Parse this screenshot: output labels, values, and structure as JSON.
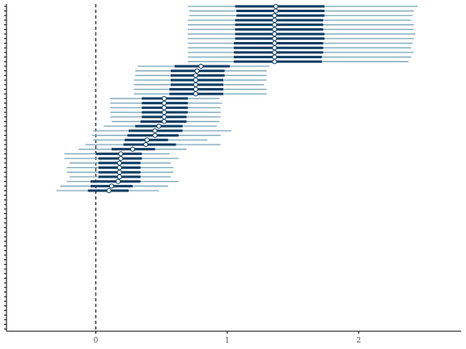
{
  "chart_data": {
    "type": "forest-interval",
    "title": "",
    "xlabel": "",
    "ylabel": "",
    "xlim": [
      -0.68,
      2.78
    ],
    "xticks": [
      0,
      1,
      2
    ],
    "xtick_labels": [
      "0",
      "1",
      "2"
    ],
    "reference_line_x": 0,
    "y_slots": 71,
    "colors": {
      "outer_interval": "#7aa6b6",
      "inner_interval": "#0b3d63",
      "point_fill": "#ffffff",
      "point_stroke": "#0b3d63",
      "reference_line": "#000000",
      "axis": "#000000"
    },
    "rows": [
      {
        "mean": 1.37,
        "inner": [
          1.06,
          1.74
        ],
        "outer": [
          0.7,
          2.45
        ]
      },
      {
        "mean": 1.37,
        "inner": [
          1.07,
          1.74
        ],
        "outer": [
          0.71,
          2.42
        ]
      },
      {
        "mean": 1.36,
        "inner": [
          1.07,
          1.74
        ],
        "outer": [
          0.71,
          2.41
        ]
      },
      {
        "mean": 1.36,
        "inner": [
          1.06,
          1.73
        ],
        "outer": [
          0.7,
          2.4
        ]
      },
      {
        "mean": 1.36,
        "inner": [
          1.06,
          1.73
        ],
        "outer": [
          0.7,
          2.42
        ]
      },
      {
        "mean": 1.36,
        "inner": [
          1.06,
          1.73
        ],
        "outer": [
          0.7,
          2.42
        ]
      },
      {
        "mean": 1.36,
        "inner": [
          1.06,
          1.74
        ],
        "outer": [
          0.7,
          2.43
        ]
      },
      {
        "mean": 1.36,
        "inner": [
          1.06,
          1.74
        ],
        "outer": [
          0.7,
          2.42
        ]
      },
      {
        "mean": 1.36,
        "inner": [
          1.05,
          1.73
        ],
        "outer": [
          0.7,
          2.41
        ]
      },
      {
        "mean": 1.36,
        "inner": [
          1.05,
          1.73
        ],
        "outer": [
          0.7,
          2.4
        ]
      },
      {
        "mean": 1.36,
        "inner": [
          1.05,
          1.73
        ],
        "outer": [
          0.7,
          2.42
        ]
      },
      {
        "mean": 1.36,
        "inner": [
          1.05,
          1.72
        ],
        "outer": [
          0.7,
          2.4
        ]
      },
      {
        "mean": 1.36,
        "inner": [
          1.05,
          1.72
        ],
        "outer": [
          0.7,
          2.38
        ]
      },
      {
        "mean": 0.8,
        "inner": [
          0.6,
          1.02
        ],
        "outer": [
          0.32,
          1.32
        ]
      },
      {
        "mean": 0.77,
        "inner": [
          0.57,
          0.98
        ],
        "outer": [
          0.3,
          1.3
        ]
      },
      {
        "mean": 0.76,
        "inner": [
          0.57,
          0.98
        ],
        "outer": [
          0.3,
          1.3
        ]
      },
      {
        "mean": 0.76,
        "inner": [
          0.57,
          0.97
        ],
        "outer": [
          0.29,
          1.3
        ]
      },
      {
        "mean": 0.76,
        "inner": [
          0.57,
          0.97
        ],
        "outer": [
          0.29,
          1.28
        ]
      },
      {
        "mean": 0.76,
        "inner": [
          0.56,
          0.97
        ],
        "outer": [
          0.29,
          1.3
        ]
      },
      {
        "mean": 0.76,
        "inner": [
          0.56,
          0.97
        ],
        "outer": [
          0.29,
          1.3
        ]
      },
      {
        "mean": 0.52,
        "inner": [
          0.35,
          0.7
        ],
        "outer": [
          0.11,
          0.94
        ]
      },
      {
        "mean": 0.52,
        "inner": [
          0.35,
          0.7
        ],
        "outer": [
          0.11,
          0.96
        ]
      },
      {
        "mean": 0.52,
        "inner": [
          0.35,
          0.7
        ],
        "outer": [
          0.11,
          0.95
        ]
      },
      {
        "mean": 0.52,
        "inner": [
          0.35,
          0.7
        ],
        "outer": [
          0.11,
          0.95
        ]
      },
      {
        "mean": 0.52,
        "inner": [
          0.35,
          0.69
        ],
        "outer": [
          0.11,
          0.95
        ]
      },
      {
        "mean": 0.52,
        "inner": [
          0.34,
          0.69
        ],
        "outer": [
          0.12,
          0.94
        ]
      },
      {
        "mean": 0.48,
        "inner": [
          0.3,
          0.66
        ],
        "outer": [
          0.06,
          0.92
        ]
      },
      {
        "mean": 0.45,
        "inner": [
          0.25,
          0.66
        ],
        "outer": [
          -0.02,
          1.03
        ]
      },
      {
        "mean": 0.45,
        "inner": [
          0.24,
          0.63
        ],
        "outer": [
          -0.03,
          0.95
        ]
      },
      {
        "mean": 0.39,
        "inner": [
          0.22,
          0.55
        ],
        "outer": [
          -0.02,
          0.85
        ]
      },
      {
        "mean": 0.38,
        "inner": [
          0.21,
          0.61
        ],
        "outer": [
          -0.08,
          0.95
        ]
      },
      {
        "mean": 0.28,
        "inner": [
          0.12,
          0.45
        ],
        "outer": [
          -0.13,
          0.69
        ]
      },
      {
        "mean": 0.19,
        "inner": [
          0.0,
          0.35
        ],
        "outer": [
          -0.24,
          0.56
        ]
      },
      {
        "mean": 0.19,
        "inner": [
          0.02,
          0.35
        ],
        "outer": [
          -0.24,
          0.63
        ]
      },
      {
        "mean": 0.18,
        "inner": [
          0.02,
          0.34
        ],
        "outer": [
          -0.2,
          0.57
        ]
      },
      {
        "mean": 0.18,
        "inner": [
          0.02,
          0.34
        ],
        "outer": [
          -0.22,
          0.59
        ]
      },
      {
        "mean": 0.18,
        "inner": [
          0.02,
          0.34
        ],
        "outer": [
          -0.22,
          0.59
        ]
      },
      {
        "mean": 0.18,
        "inner": [
          0.02,
          0.34
        ],
        "outer": [
          -0.2,
          0.57
        ]
      },
      {
        "mean": 0.17,
        "inner": [
          -0.04,
          0.34
        ],
        "outer": [
          -0.22,
          0.63
        ]
      },
      {
        "mean": 0.12,
        "inner": [
          -0.04,
          0.28
        ],
        "outer": [
          -0.27,
          0.55
        ]
      },
      {
        "mean": 0.1,
        "inner": [
          -0.06,
          0.25
        ],
        "outer": [
          -0.3,
          0.48
        ]
      }
    ]
  }
}
